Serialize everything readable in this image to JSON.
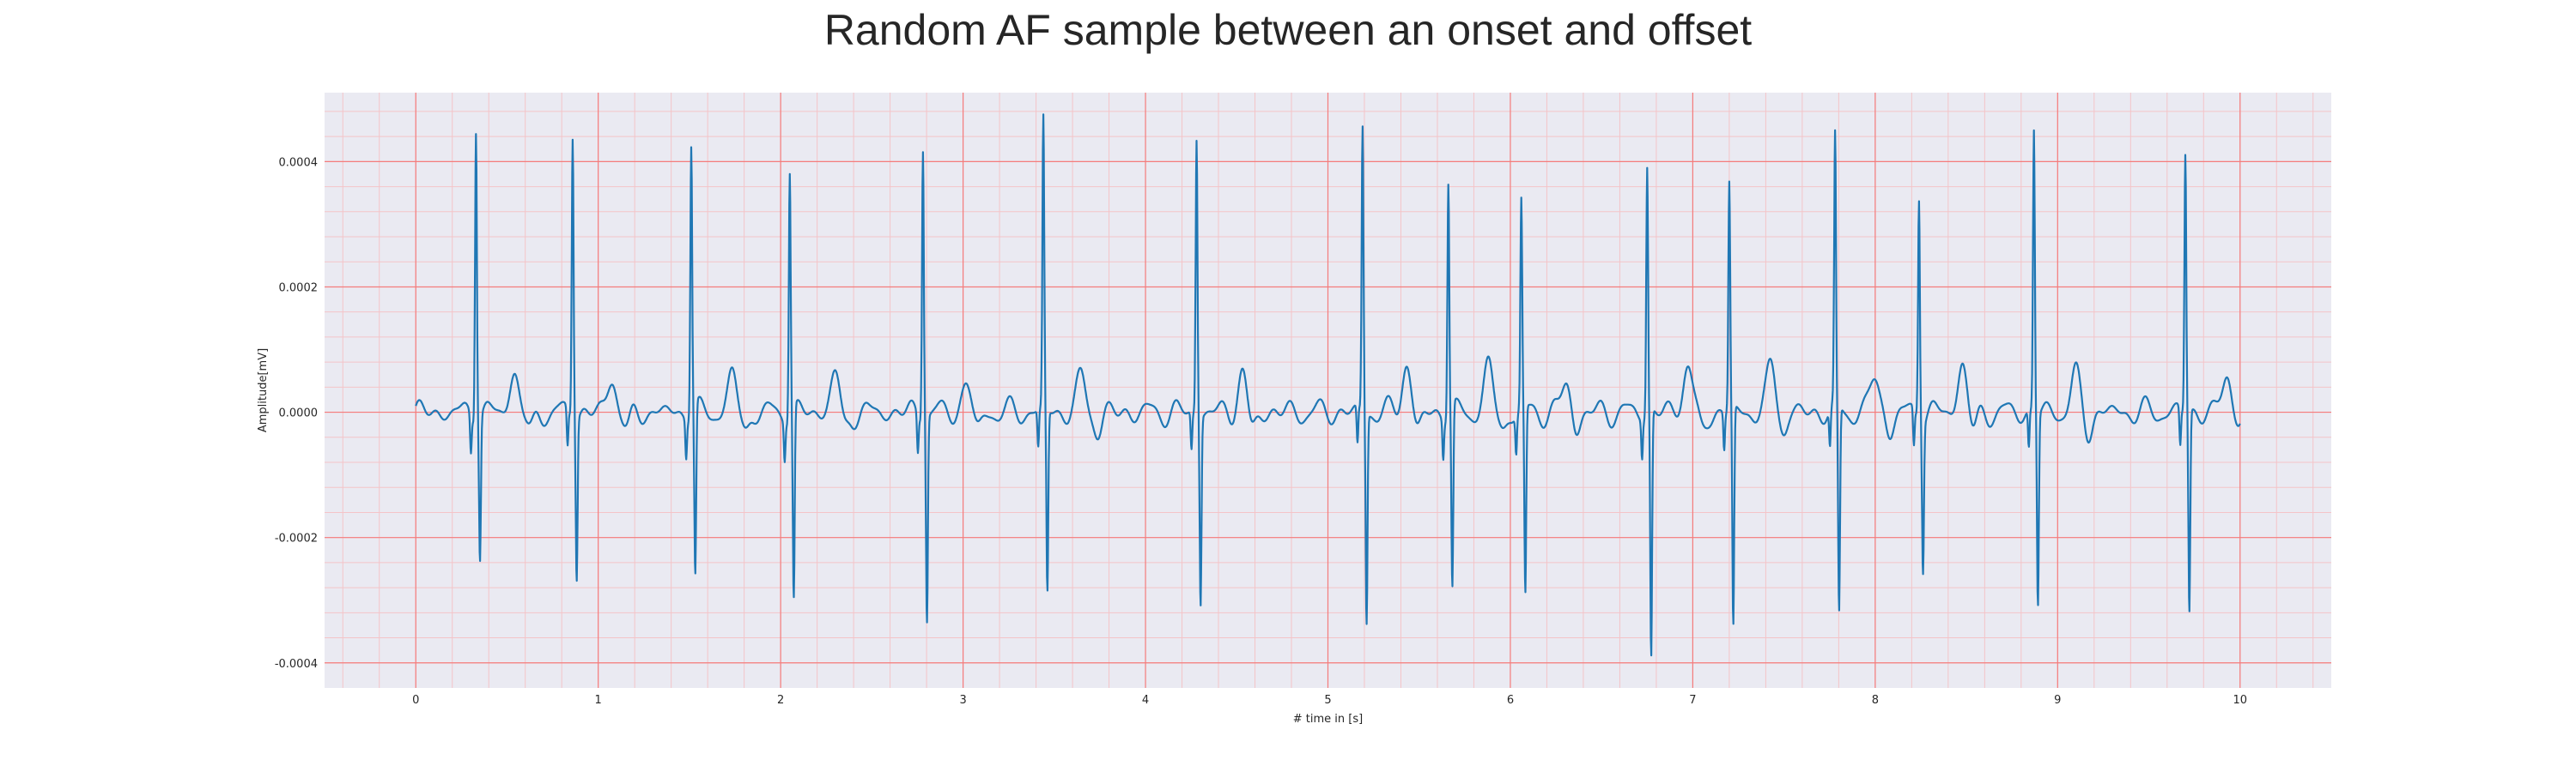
{
  "chart_data": {
    "type": "line",
    "title": "Random AF sample between an onset and offset",
    "xlabel": "# time in [s]",
    "ylabel": "Amplitude[mV]",
    "xlim": [
      -0.5,
      10.5
    ],
    "ylim": [
      -0.00044,
      0.00051
    ],
    "x_ticks": [
      0,
      1,
      2,
      3,
      4,
      5,
      6,
      7,
      8,
      9,
      10
    ],
    "y_ticks": [
      -0.0004,
      -0.0002,
      0.0,
      0.0002,
      0.0004
    ],
    "y_tick_labels": [
      "-0.0004",
      "-0.0002",
      "0.0000",
      "0.0002",
      "0.0004"
    ],
    "grid": true,
    "minor_grid": true,
    "colors": {
      "line": "#1f77b4",
      "major_grid": "#f47c7c",
      "minor_grid": "#f4c4c8",
      "background": "#eaeaf2"
    },
    "r_peaks": [
      {
        "t": 0.33,
        "peak": 0.00047,
        "trough": -0.000225
      },
      {
        "t": 0.86,
        "peak": 0.00045,
        "trough": -0.000255
      },
      {
        "t": 1.51,
        "peak": 0.000435,
        "trough": -0.00027
      },
      {
        "t": 2.05,
        "peak": 0.000395,
        "trough": -0.000305
      },
      {
        "t": 2.78,
        "peak": 0.000435,
        "trough": -0.000325
      },
      {
        "t": 3.44,
        "peak": 0.000465,
        "trough": -0.00029
      },
      {
        "t": 4.28,
        "peak": 0.00044,
        "trough": -0.0003
      },
      {
        "t": 5.19,
        "peak": 0.000455,
        "trough": -0.000335
      },
      {
        "t": 5.66,
        "peak": 0.000375,
        "trough": -0.00029
      },
      {
        "t": 6.06,
        "peak": 0.000335,
        "trough": -0.0003
      },
      {
        "t": 6.75,
        "peak": 0.000395,
        "trough": -0.000395
      },
      {
        "t": 7.2,
        "peak": 0.000365,
        "trough": -0.00035
      },
      {
        "t": 7.78,
        "peak": 0.00043,
        "trough": -0.00033
      },
      {
        "t": 8.24,
        "peak": 0.000355,
        "trough": -0.000235
      },
      {
        "t": 8.87,
        "peak": 0.00045,
        "trough": -0.000305
      },
      {
        "t": 9.7,
        "peak": 0.000415,
        "trough": -0.00032
      }
    ],
    "waveform_segments": [
      [
        0.0,
        -5e-06
      ],
      [
        0.05,
        5e-06
      ],
      [
        0.1,
        -1e-05
      ],
      [
        0.15,
        -5e-06
      ],
      [
        0.2,
        1e-05
      ],
      [
        0.25,
        -5e-06
      ],
      [
        0.28,
        2e-05
      ]
    ],
    "x_range": [
      0,
      10
    ]
  }
}
